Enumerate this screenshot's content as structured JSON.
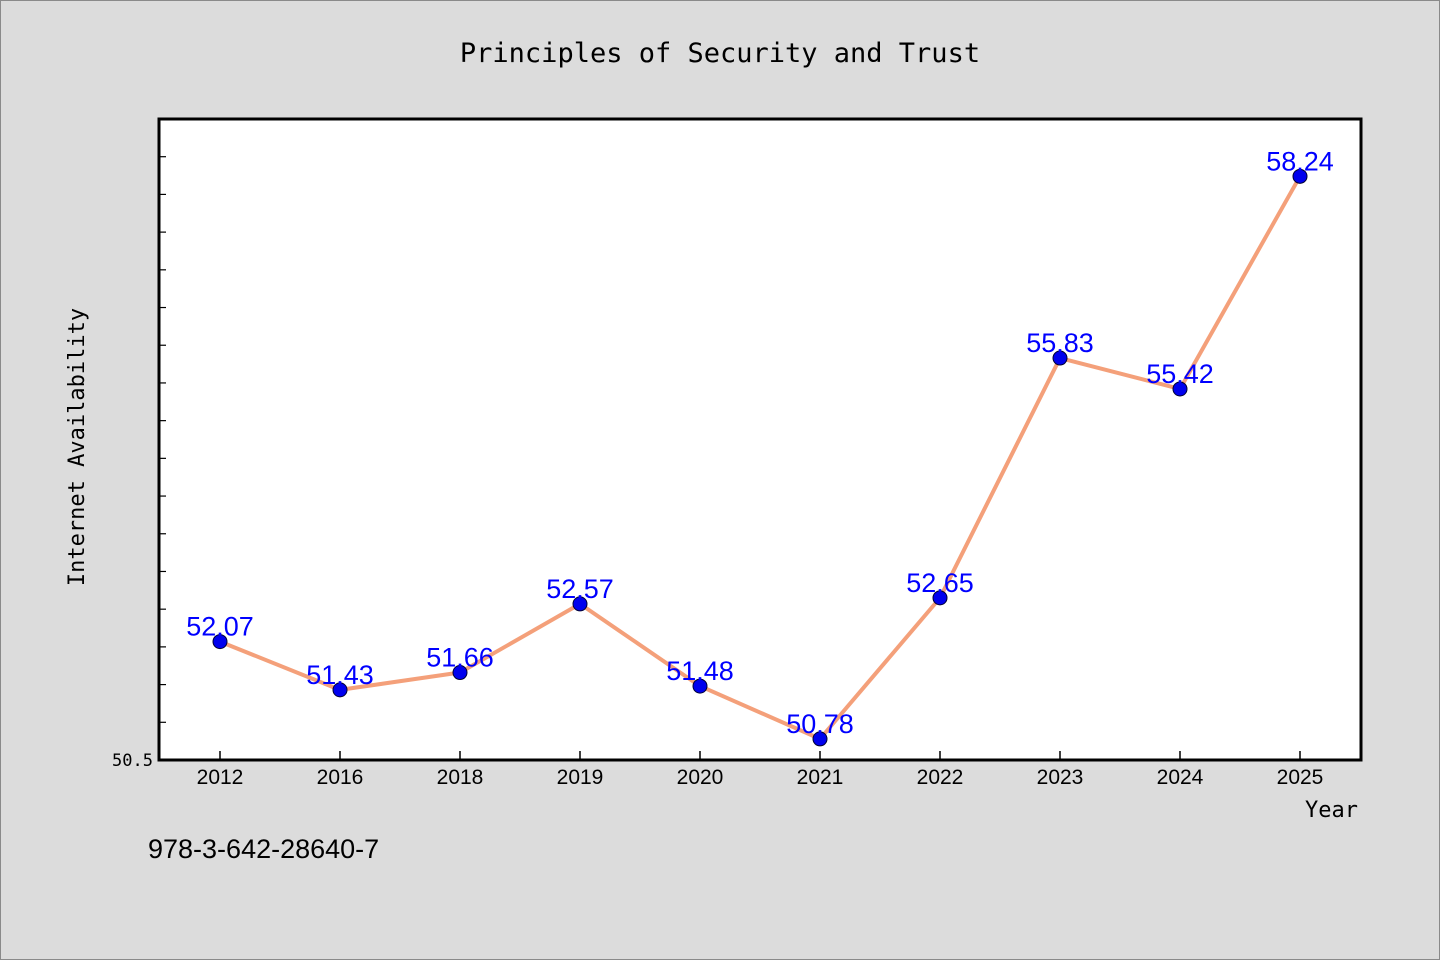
{
  "chart_data": {
    "type": "line",
    "title": "Principles of Security and Trust",
    "xlabel": "Year",
    "ylabel": "Internet Availability",
    "categories": [
      "2012",
      "2016",
      "2018",
      "2019",
      "2020",
      "2021",
      "2022",
      "2023",
      "2024",
      "2025"
    ],
    "values": [
      52.07,
      51.43,
      51.66,
      52.57,
      51.48,
      50.78,
      52.65,
      55.83,
      55.42,
      58.24
    ],
    "data_labels": [
      "52.07",
      "51.43",
      "51.66",
      "52.57",
      "51.48",
      "50.78",
      "52.65",
      "55.83",
      "55.42",
      "58.24"
    ],
    "ylim": [
      50.5,
      59.0
    ],
    "y_tick_labels": [
      "50.5"
    ],
    "grid": false,
    "line_color": "#f4a07a",
    "marker_color": "#0000ee",
    "label_color": "#0000ff"
  },
  "footer": {
    "isbn": "978-3-642-28640-7"
  }
}
